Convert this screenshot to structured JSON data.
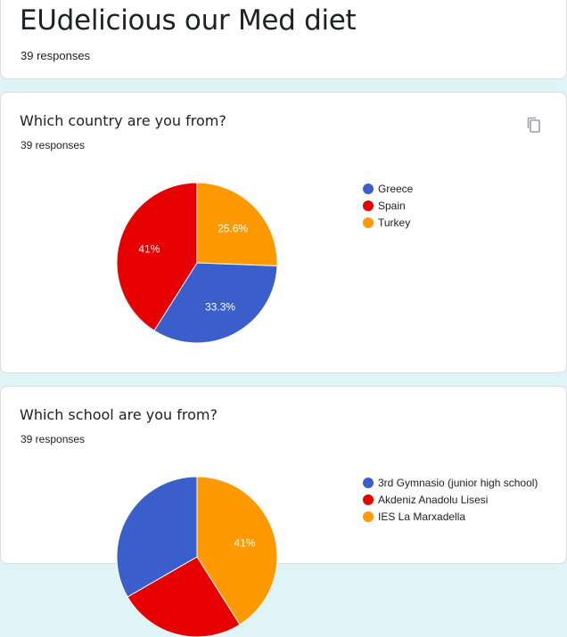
{
  "form": {
    "title": "EUdelicious our Med diet",
    "responses": "39 responses"
  },
  "questions": [
    {
      "title": "Which country are you from?",
      "responses": "39 responses",
      "copy_icon": "copy-icon"
    },
    {
      "title": "Which school are you from?",
      "responses": "39 responses"
    }
  ],
  "chart_data": [
    {
      "type": "pie",
      "categories": [
        "Greece",
        "Spain",
        "Turkey"
      ],
      "values": [
        33.3,
        41,
        25.6
      ],
      "labels": [
        "33.3%",
        "41%",
        "25.6%"
      ],
      "colors": [
        "#3a5fcd",
        "#e60000",
        "#ff9900"
      ],
      "legend_position": "right"
    },
    {
      "type": "pie",
      "categories": [
        "3rd Gymnasio (junior high school)",
        "Akdeniz Anadolu Lisesi",
        "IES La Marxadella"
      ],
      "values": [
        33.3,
        25.6,
        41
      ],
      "labels": [
        "",
        "",
        "41%"
      ],
      "colors": [
        "#3a5fcd",
        "#e60000",
        "#ff9900"
      ],
      "legend_position": "right"
    }
  ]
}
